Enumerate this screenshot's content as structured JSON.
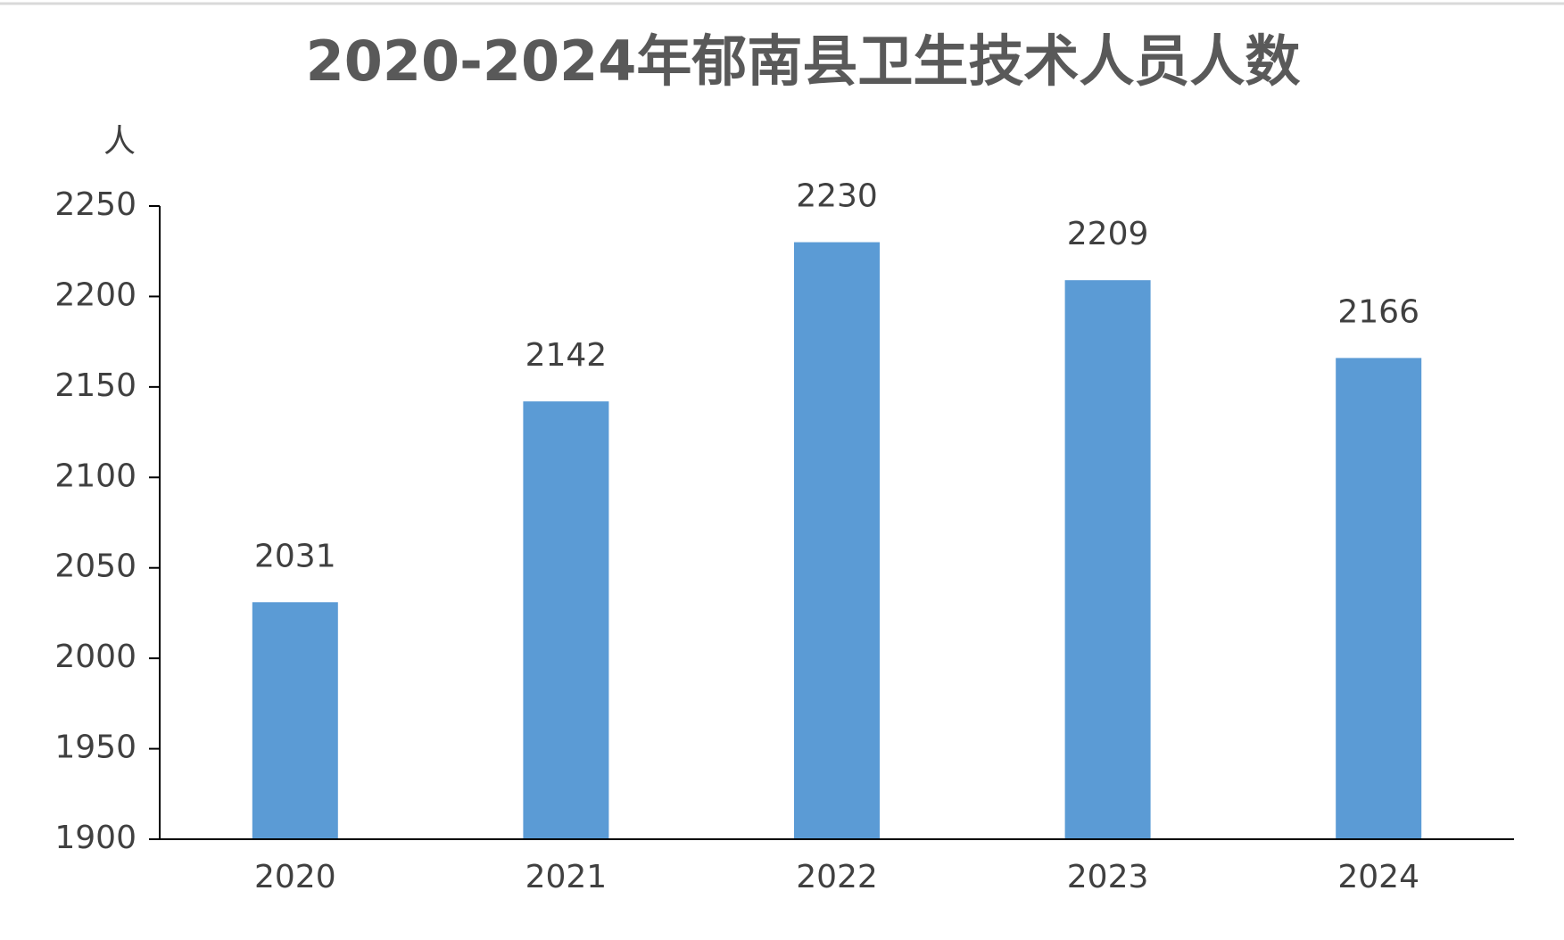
{
  "chart_data": {
    "type": "bar",
    "title": "2020-2024年郁南县卫生技术人员人数",
    "y_label": "人",
    "categories": [
      "2020",
      "2021",
      "2022",
      "2023",
      "2024"
    ],
    "values": [
      2031,
      2142,
      2230,
      2209,
      2166
    ],
    "color": "#5b9bd5",
    "ylim": [
      1900,
      2250
    ],
    "yticks": [
      1900,
      1950,
      2000,
      2050,
      2100,
      2150,
      2200,
      2250
    ],
    "grid": false
  }
}
